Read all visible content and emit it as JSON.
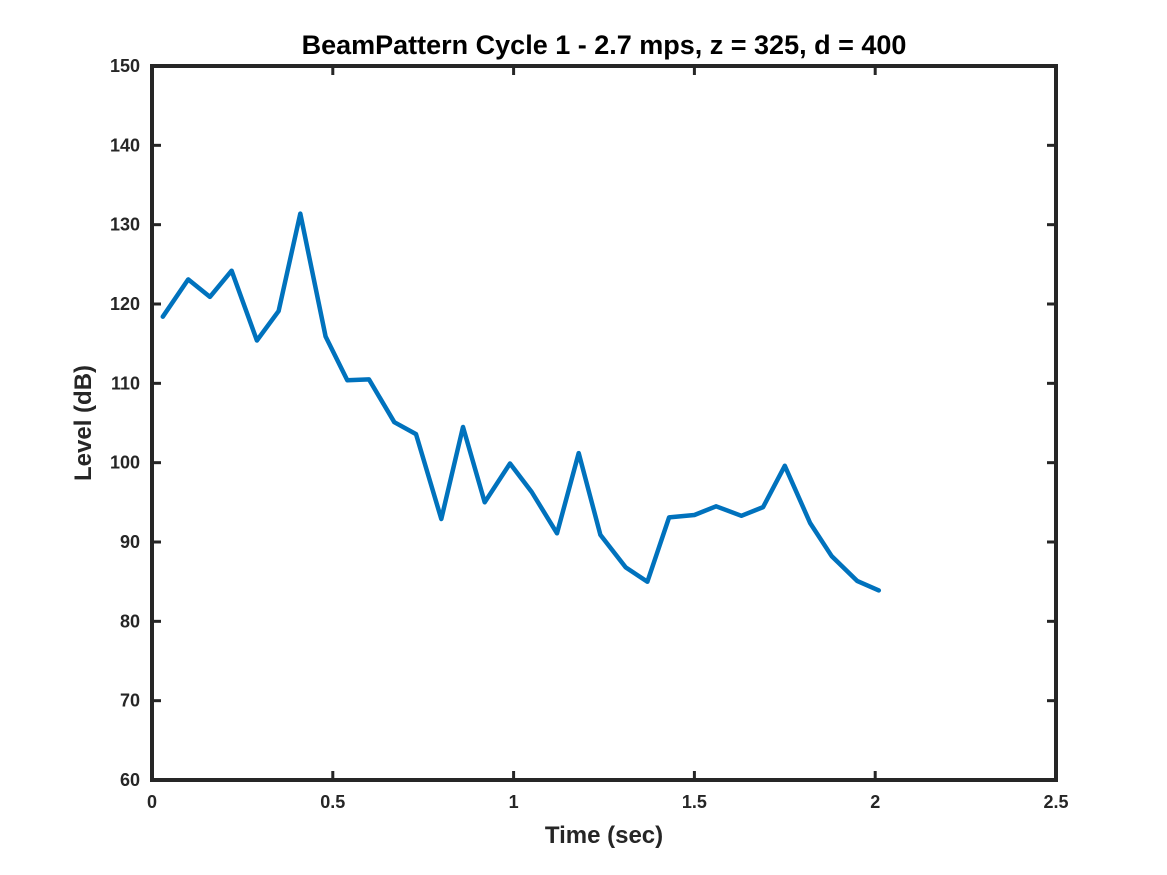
{
  "chart_data": {
    "type": "line",
    "title": "BeamPattern Cycle 1 - 2.7 mps, z = 325, d = 400",
    "xlabel": "Time (sec)",
    "ylabel": "Level (dB)",
    "xlim": [
      0,
      2.5
    ],
    "ylim": [
      60,
      150
    ],
    "xticks": [
      0,
      0.5,
      1,
      1.5,
      2,
      2.5
    ],
    "xtick_labels": [
      "0",
      "0.5",
      "1",
      "1.5",
      "2",
      "2.5"
    ],
    "yticks": [
      60,
      70,
      80,
      90,
      100,
      110,
      120,
      130,
      140,
      150
    ],
    "ytick_labels": [
      "60",
      "70",
      "80",
      "90",
      "100",
      "110",
      "120",
      "130",
      "140",
      "150"
    ],
    "grid": false,
    "line_color": "#0072BD",
    "axis_color": "#262626",
    "series": [
      {
        "x": [
          0.03,
          0.1,
          0.16,
          0.22,
          0.29,
          0.35,
          0.41,
          0.48,
          0.54,
          0.6,
          0.67,
          0.73,
          0.8,
          0.86,
          0.92,
          0.99,
          1.05,
          1.12,
          1.18,
          1.24,
          1.31,
          1.37,
          1.43,
          1.5,
          1.56,
          1.63,
          1.69,
          1.75,
          1.82,
          1.88,
          1.95,
          2.01
        ],
        "y": [
          118.4,
          123.1,
          120.9,
          124.2,
          115.4,
          119.1,
          131.4,
          115.9,
          110.4,
          110.5,
          105.1,
          103.6,
          92.9,
          104.5,
          95.0,
          99.9,
          96.3,
          91.1,
          101.2,
          90.9,
          86.8,
          85.0,
          93.1,
          93.4,
          94.5,
          93.3,
          94.4,
          99.6,
          92.4,
          88.2,
          85.1,
          83.9
        ]
      }
    ]
  }
}
